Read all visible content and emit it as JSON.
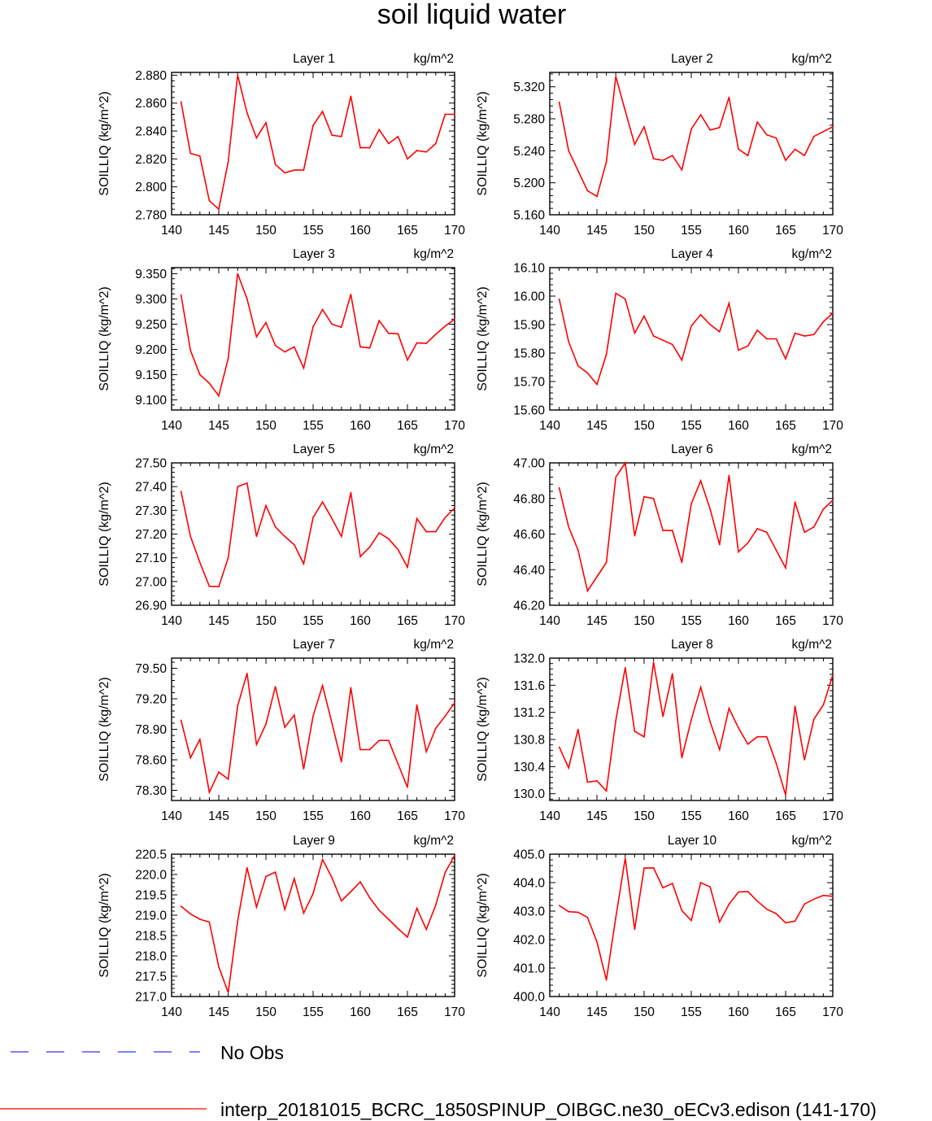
{
  "title": "soil liquid water",
  "legend": [
    {
      "label": "No Obs",
      "color": "#3333ff",
      "style": "dashed"
    },
    {
      "label": "interp_20181015_BCRC_1850SPINUP_OIBGC.ne30_oECv3.edison (141-170)",
      "color": "#ff0000",
      "style": "solid"
    }
  ],
  "chart_data": [
    {
      "type": "line",
      "title": "Layer 1",
      "units": "kg/m^2",
      "ylabel": "SOILLIQ  (kg/m^2)",
      "xlim": [
        140,
        170
      ],
      "ylim": [
        2.78,
        2.882
      ],
      "xticks": [
        "140",
        "145",
        "150",
        "155",
        "160",
        "165",
        "170"
      ],
      "yticks": [
        "2.780",
        "2.800",
        "2.820",
        "2.840",
        "2.860",
        "2.880"
      ],
      "series": [
        {
          "color": "#ff0000",
          "x": [
            141,
            142,
            143,
            144,
            145,
            146,
            147,
            148,
            149,
            150,
            151,
            152,
            153,
            154,
            155,
            156,
            157,
            158,
            159,
            160,
            161,
            162,
            163,
            164,
            165,
            166,
            167,
            168,
            169,
            170
          ],
          "values": [
            2.861,
            2.824,
            2.822,
            2.79,
            2.784,
            2.818,
            2.88,
            2.853,
            2.835,
            2.846,
            2.816,
            2.81,
            2.812,
            2.812,
            2.844,
            2.854,
            2.837,
            2.836,
            2.865,
            2.828,
            2.828,
            2.841,
            2.831,
            2.836,
            2.82,
            2.826,
            2.825,
            2.831,
            2.852,
            2.852
          ]
        }
      ]
    },
    {
      "type": "line",
      "title": "Layer 2",
      "units": "kg/m^2",
      "ylabel": "SOILLIQ  (kg/m^2)",
      "xlim": [
        140,
        170
      ],
      "ylim": [
        5.16,
        5.338
      ],
      "xticks": [
        "140",
        "145",
        "150",
        "155",
        "160",
        "165",
        "170"
      ],
      "yticks": [
        "5.160",
        "5.200",
        "5.240",
        "5.280",
        "5.320"
      ],
      "series": [
        {
          "color": "#ff0000",
          "x": [
            141,
            142,
            143,
            144,
            145,
            146,
            147,
            148,
            149,
            150,
            151,
            152,
            153,
            154,
            155,
            156,
            157,
            158,
            159,
            160,
            161,
            162,
            163,
            164,
            165,
            166,
            167,
            168,
            169,
            170
          ],
          "values": [
            5.301,
            5.24,
            5.215,
            5.19,
            5.183,
            5.226,
            5.333,
            5.29,
            5.248,
            5.27,
            5.23,
            5.228,
            5.234,
            5.216,
            5.267,
            5.285,
            5.266,
            5.269,
            5.307,
            5.242,
            5.234,
            5.276,
            5.26,
            5.256,
            5.228,
            5.242,
            5.234,
            5.258,
            5.264,
            5.27
          ]
        }
      ]
    },
    {
      "type": "line",
      "title": "Layer 3",
      "units": "kg/m^2",
      "ylabel": "SOILLIQ  (kg/m^2)",
      "xlim": [
        140,
        170
      ],
      "ylim": [
        9.08,
        9.362
      ],
      "xticks": [
        "140",
        "145",
        "150",
        "155",
        "160",
        "165",
        "170"
      ],
      "yticks": [
        "9.100",
        "9.150",
        "9.200",
        "9.250",
        "9.300",
        "9.350"
      ],
      "series": [
        {
          "color": "#ff0000",
          "x": [
            141,
            142,
            143,
            144,
            145,
            146,
            147,
            148,
            149,
            150,
            151,
            152,
            153,
            154,
            155,
            156,
            157,
            158,
            159,
            160,
            161,
            162,
            163,
            164,
            165,
            166,
            167,
            168,
            169,
            170
          ],
          "values": [
            9.308,
            9.198,
            9.15,
            9.133,
            9.108,
            9.182,
            9.35,
            9.3,
            9.225,
            9.253,
            9.208,
            9.195,
            9.205,
            9.163,
            9.245,
            9.279,
            9.25,
            9.244,
            9.309,
            9.205,
            9.203,
            9.257,
            9.232,
            9.231,
            9.179,
            9.213,
            9.212,
            9.23,
            9.246,
            9.26
          ]
        }
      ]
    },
    {
      "type": "line",
      "title": "Layer 4",
      "units": "kg/m^2",
      "ylabel": "SOILLIQ  (kg/m^2)",
      "xlim": [
        140,
        170
      ],
      "ylim": [
        15.6,
        16.1
      ],
      "xticks": [
        "140",
        "145",
        "150",
        "155",
        "160",
        "165",
        "170"
      ],
      "yticks": [
        "15.60",
        "15.70",
        "15.80",
        "15.90",
        "16.00",
        "16.10"
      ],
      "series": [
        {
          "color": "#ff0000",
          "x": [
            141,
            142,
            143,
            144,
            145,
            146,
            147,
            148,
            149,
            150,
            151,
            152,
            153,
            154,
            155,
            156,
            157,
            158,
            159,
            160,
            161,
            162,
            163,
            164,
            165,
            166,
            167,
            168,
            169,
            170
          ],
          "values": [
            15.99,
            15.84,
            15.755,
            15.73,
            15.69,
            15.795,
            16.01,
            15.99,
            15.87,
            15.93,
            15.86,
            15.845,
            15.83,
            15.775,
            15.895,
            15.935,
            15.9,
            15.875,
            15.975,
            15.81,
            15.825,
            15.88,
            15.85,
            15.85,
            15.78,
            15.87,
            15.86,
            15.865,
            15.91,
            15.94
          ]
        }
      ]
    },
    {
      "type": "line",
      "title": "Layer 5",
      "units": "kg/m^2",
      "ylabel": "SOILLIQ  (kg/m^2)",
      "xlim": [
        140,
        170
      ],
      "ylim": [
        26.9,
        27.5
      ],
      "xticks": [
        "140",
        "145",
        "150",
        "155",
        "160",
        "165",
        "170"
      ],
      "yticks": [
        "26.90",
        "27.00",
        "27.10",
        "27.20",
        "27.30",
        "27.40",
        "27.50"
      ],
      "series": [
        {
          "color": "#ff0000",
          "x": [
            141,
            142,
            143,
            144,
            145,
            146,
            147,
            148,
            149,
            150,
            151,
            152,
            153,
            154,
            155,
            156,
            157,
            158,
            159,
            160,
            161,
            162,
            163,
            164,
            165,
            166,
            167,
            168,
            169,
            170
          ],
          "values": [
            27.38,
            27.19,
            27.08,
            26.98,
            26.978,
            27.1,
            27.4,
            27.415,
            27.19,
            27.32,
            27.23,
            27.19,
            27.155,
            27.075,
            27.27,
            27.335,
            27.265,
            27.19,
            27.375,
            27.105,
            27.145,
            27.205,
            27.18,
            27.135,
            27.06,
            27.265,
            27.21,
            27.21,
            27.27,
            27.31
          ]
        }
      ]
    },
    {
      "type": "line",
      "title": "Layer 6",
      "units": "kg/m^2",
      "ylabel": "SOILLIQ  (kg/m^2)",
      "xlim": [
        140,
        170
      ],
      "ylim": [
        46.2,
        47.0
      ],
      "xticks": [
        "140",
        "145",
        "150",
        "155",
        "160",
        "165",
        "170"
      ],
      "yticks": [
        "46.20",
        "46.40",
        "46.60",
        "46.80",
        "47.00"
      ],
      "series": [
        {
          "color": "#ff0000",
          "x": [
            141,
            142,
            143,
            144,
            145,
            146,
            147,
            148,
            149,
            150,
            151,
            152,
            153,
            154,
            155,
            156,
            157,
            158,
            159,
            160,
            161,
            162,
            163,
            164,
            165,
            166,
            167,
            168,
            169,
            170
          ],
          "values": [
            46.86,
            46.64,
            46.51,
            46.28,
            46.36,
            46.44,
            46.92,
            47.0,
            46.59,
            46.81,
            46.8,
            46.62,
            46.62,
            46.44,
            46.77,
            46.9,
            46.74,
            46.54,
            46.93,
            46.5,
            46.55,
            46.63,
            46.61,
            46.51,
            46.41,
            46.78,
            46.61,
            46.64,
            46.74,
            46.79
          ]
        }
      ]
    },
    {
      "type": "line",
      "title": "Layer 7",
      "units": "kg/m^2",
      "ylabel": "SOILLIQ  (kg/m^2)",
      "xlim": [
        140,
        170
      ],
      "ylim": [
        78.2,
        79.6
      ],
      "xticks": [
        "140",
        "145",
        "150",
        "155",
        "160",
        "165",
        "170"
      ],
      "yticks": [
        "78.30",
        "78.60",
        "78.90",
        "79.20",
        "79.50"
      ],
      "series": [
        {
          "color": "#ff0000",
          "x": [
            141,
            142,
            143,
            144,
            145,
            146,
            147,
            148,
            149,
            150,
            151,
            152,
            153,
            154,
            155,
            156,
            157,
            158,
            159,
            160,
            161,
            162,
            163,
            164,
            165,
            166,
            167,
            168,
            169,
            170
          ],
          "values": [
            78.99,
            78.62,
            78.8,
            78.28,
            78.48,
            78.41,
            79.13,
            79.45,
            78.75,
            78.95,
            79.32,
            78.92,
            79.04,
            78.51,
            79.03,
            79.33,
            78.96,
            78.58,
            79.31,
            78.7,
            78.7,
            78.79,
            78.79,
            78.56,
            78.33,
            79.14,
            78.68,
            78.91,
            79.03,
            79.16
          ]
        }
      ]
    },
    {
      "type": "line",
      "title": "Layer 8",
      "units": "kg/m^2",
      "ylabel": "SOILLIQ  (kg/m^2)",
      "xlim": [
        140,
        170
      ],
      "ylim": [
        129.9,
        132.0
      ],
      "xticks": [
        "140",
        "145",
        "150",
        "155",
        "160",
        "165",
        "170"
      ],
      "yticks": [
        "130.0",
        "130.4",
        "130.8",
        "131.2",
        "131.6",
        "132.0"
      ],
      "series": [
        {
          "color": "#ff0000",
          "x": [
            141,
            142,
            143,
            144,
            145,
            146,
            147,
            148,
            149,
            150,
            151,
            152,
            153,
            154,
            155,
            156,
            157,
            158,
            159,
            160,
            161,
            162,
            163,
            164,
            165,
            166,
            167,
            168,
            169,
            170
          ],
          "values": [
            130.69,
            130.38,
            130.95,
            130.17,
            130.19,
            130.04,
            131.08,
            131.86,
            130.92,
            130.84,
            131.94,
            131.14,
            131.77,
            130.53,
            131.09,
            131.57,
            131.06,
            130.65,
            131.26,
            130.97,
            130.73,
            130.84,
            130.84,
            130.45,
            129.98,
            131.29,
            130.5,
            131.1,
            131.31,
            131.75
          ]
        }
      ]
    },
    {
      "type": "line",
      "title": "Layer 9",
      "units": "kg/m^2",
      "ylabel": "SOILLIQ  (kg/m^2)",
      "xlim": [
        140,
        170
      ],
      "ylim": [
        217.0,
        220.5
      ],
      "xticks": [
        "140",
        "145",
        "150",
        "155",
        "160",
        "165",
        "170"
      ],
      "yticks": [
        "217.0",
        "217.5",
        "218.0",
        "218.5",
        "219.0",
        "219.5",
        "220.0",
        "220.5"
      ],
      "series": [
        {
          "color": "#ff0000",
          "x": [
            141,
            142,
            143,
            144,
            145,
            146,
            147,
            148,
            149,
            150,
            151,
            152,
            153,
            154,
            155,
            156,
            157,
            158,
            159,
            160,
            161,
            162,
            163,
            164,
            165,
            166,
            167,
            168,
            169,
            170
          ],
          "values": [
            219.22,
            219.03,
            218.9,
            218.83,
            217.73,
            217.1,
            218.85,
            220.17,
            219.2,
            219.95,
            220.06,
            219.14,
            219.9,
            219.05,
            219.53,
            220.37,
            219.92,
            219.35,
            219.58,
            219.82,
            219.43,
            219.12,
            218.9,
            218.67,
            218.46,
            219.17,
            218.65,
            219.25,
            220.05,
            220.47
          ]
        }
      ]
    },
    {
      "type": "line",
      "title": "Layer 10",
      "units": "kg/m^2",
      "ylabel": "SOILLIQ  (kg/m^2)",
      "xlim": [
        140,
        170
      ],
      "ylim": [
        400.0,
        405.0
      ],
      "xticks": [
        "140",
        "145",
        "150",
        "155",
        "160",
        "165",
        "170"
      ],
      "yticks": [
        "400.0",
        "401.0",
        "402.0",
        "403.0",
        "404.0",
        "405.0"
      ],
      "series": [
        {
          "color": "#ff0000",
          "x": [
            141,
            142,
            143,
            144,
            145,
            146,
            147,
            148,
            149,
            150,
            151,
            152,
            153,
            154,
            155,
            156,
            157,
            158,
            159,
            160,
            161,
            162,
            163,
            164,
            165,
            166,
            167,
            168,
            169,
            170
          ],
          "values": [
            403.2,
            402.98,
            402.96,
            402.78,
            401.92,
            400.58,
            402.78,
            404.86,
            402.36,
            404.51,
            404.52,
            403.82,
            403.97,
            403.02,
            402.67,
            404.0,
            403.85,
            402.62,
            403.24,
            403.67,
            403.69,
            403.35,
            403.07,
            402.91,
            402.59,
            402.65,
            403.25,
            403.42,
            403.55,
            403.52
          ]
        }
      ]
    }
  ]
}
